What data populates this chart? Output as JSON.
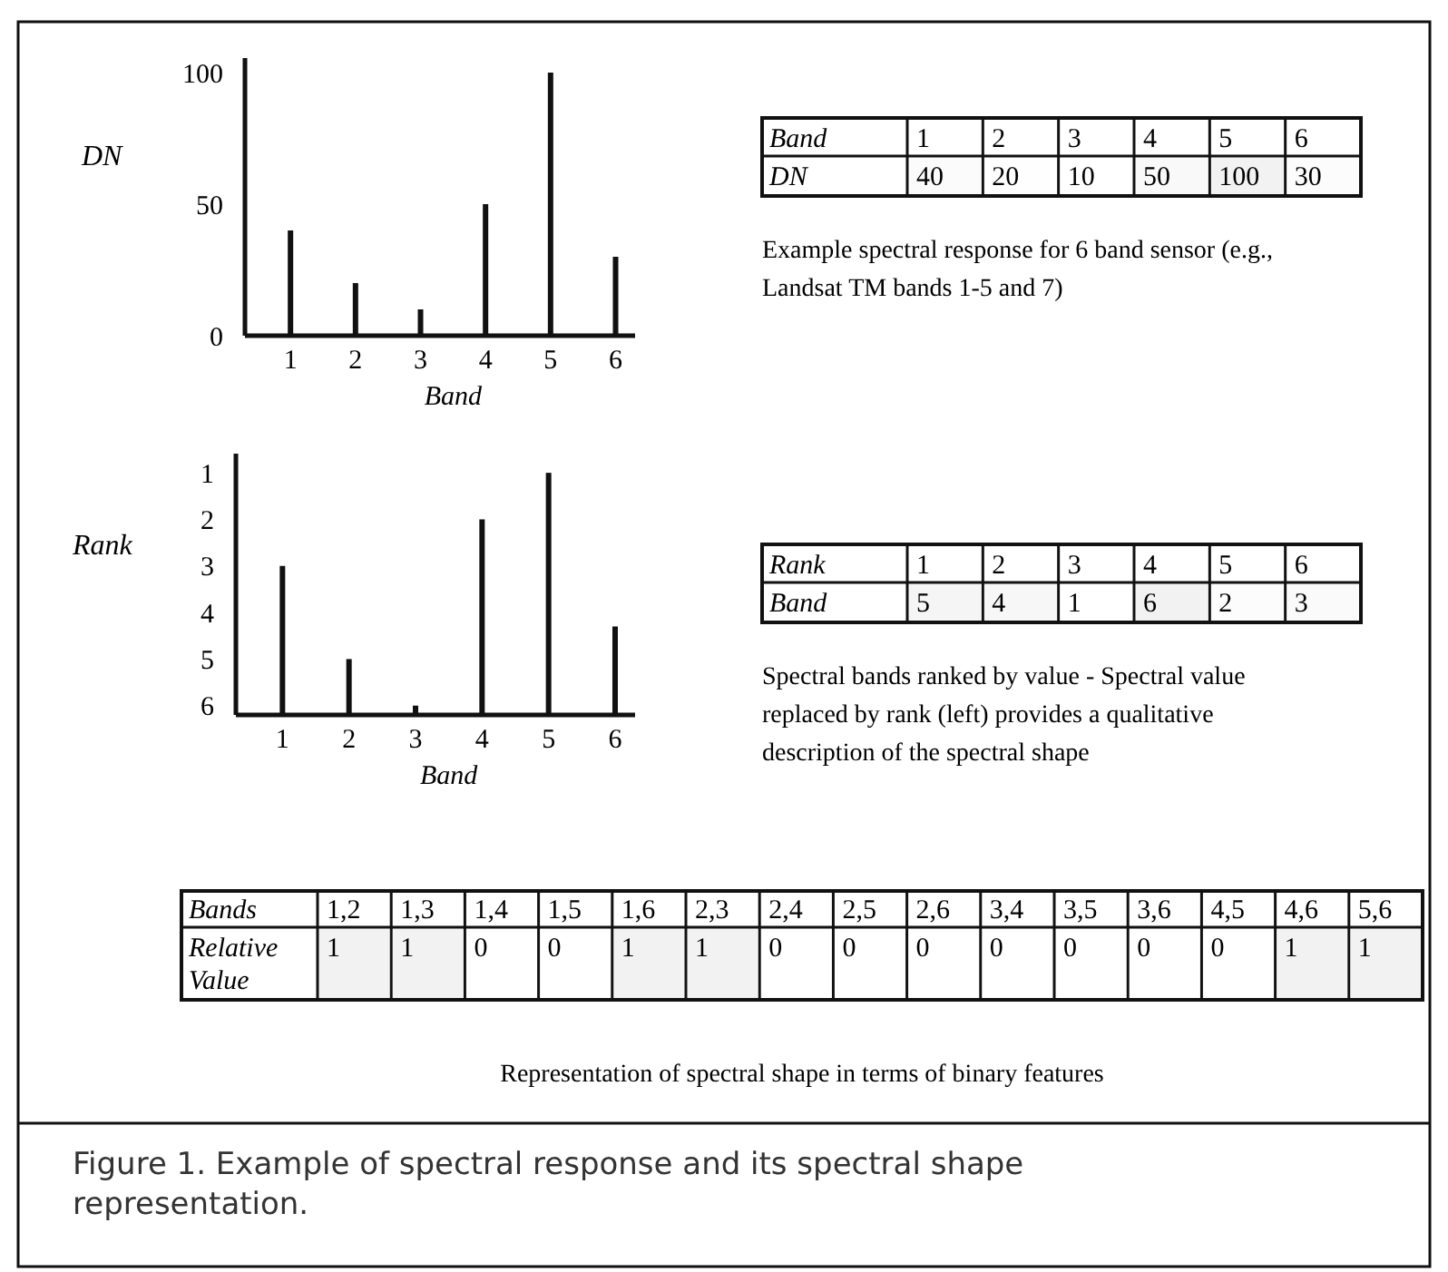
{
  "chart_data": [
    {
      "type": "bar",
      "categories": [
        "1",
        "2",
        "3",
        "4",
        "5",
        "6"
      ],
      "values": [
        40,
        20,
        10,
        50,
        100,
        30
      ],
      "color": "#111111",
      "xlabel": "Band",
      "ylabel": "DN",
      "ylim": [
        0,
        100
      ],
      "yticks": [
        0,
        50,
        100
      ]
    },
    {
      "type": "heatmap",
      "xlabel": "Band",
      "categories": [
        "1",
        "2",
        "3",
        "4",
        "5",
        "6"
      ],
      "y_categories": [
        "DN"
      ],
      "cells": [
        [
          40,
          20,
          10,
          50,
          100,
          30
        ]
      ],
      "cell_labels": [
        [
          "40",
          "20",
          "10",
          "50",
          "100",
          "30"
        ]
      ],
      "annotations": [
        "Example spectral response for 6 band sensor (e.g., Landsat TM bands 1-5 and 7)"
      ]
    },
    {
      "type": "bar",
      "categories": [
        "1",
        "2",
        "3",
        "4",
        "5",
        "6"
      ],
      "base": [
        6.2,
        6.2,
        6.2,
        6.2,
        6.2,
        6.2
      ],
      "values": [
        -3.2,
        -1.2,
        -0.2,
        -4.2,
        -5.2,
        -1.9
      ],
      "color": "#111111",
      "xlabel": "Band",
      "ylabel": "Rank",
      "ylim": [
        6.2,
        0.9
      ],
      "yticks": [
        1,
        2,
        3,
        4,
        5,
        6
      ]
    },
    {
      "type": "heatmap",
      "xlabel": "Rank",
      "categories": [
        "1",
        "2",
        "3",
        "4",
        "5",
        "6"
      ],
      "y_categories": [
        "Band"
      ],
      "cells": [
        [
          5,
          4,
          1,
          6,
          2,
          3
        ]
      ],
      "cell_labels": [
        [
          "5",
          "4",
          "1",
          "6",
          "2",
          "3"
        ]
      ],
      "annotations": [
        "Spectral bands ranked by value - Spectral value replaced by rank (left) provides a qualitative description of the spectral shape"
      ]
    },
    {
      "type": "heatmap",
      "xlabel": "Bands",
      "categories": [
        "1,2",
        "1,3",
        "1,4",
        "1,5",
        "1,6",
        "2,3",
        "2,4",
        "2,5",
        "2,6",
        "3,4",
        "3,5",
        "3,6",
        "4,5",
        "4,6",
        "5,6"
      ],
      "y_categories": [
        "Relative Value"
      ],
      "cells": [
        [
          1,
          1,
          0,
          0,
          1,
          1,
          0,
          0,
          0,
          0,
          0,
          0,
          0,
          1,
          1
        ]
      ],
      "cell_labels": [
        [
          "1",
          "1",
          "0",
          "0",
          "1",
          "1",
          "0",
          "0",
          "0",
          "0",
          "0",
          "0",
          "0",
          "1",
          "1"
        ]
      ],
      "annotations": [
        "Representation of spectral shape in terms of binary features",
        "Figure 1. Example of spectral response and its spectral shape representation."
      ]
    }
  ]
}
